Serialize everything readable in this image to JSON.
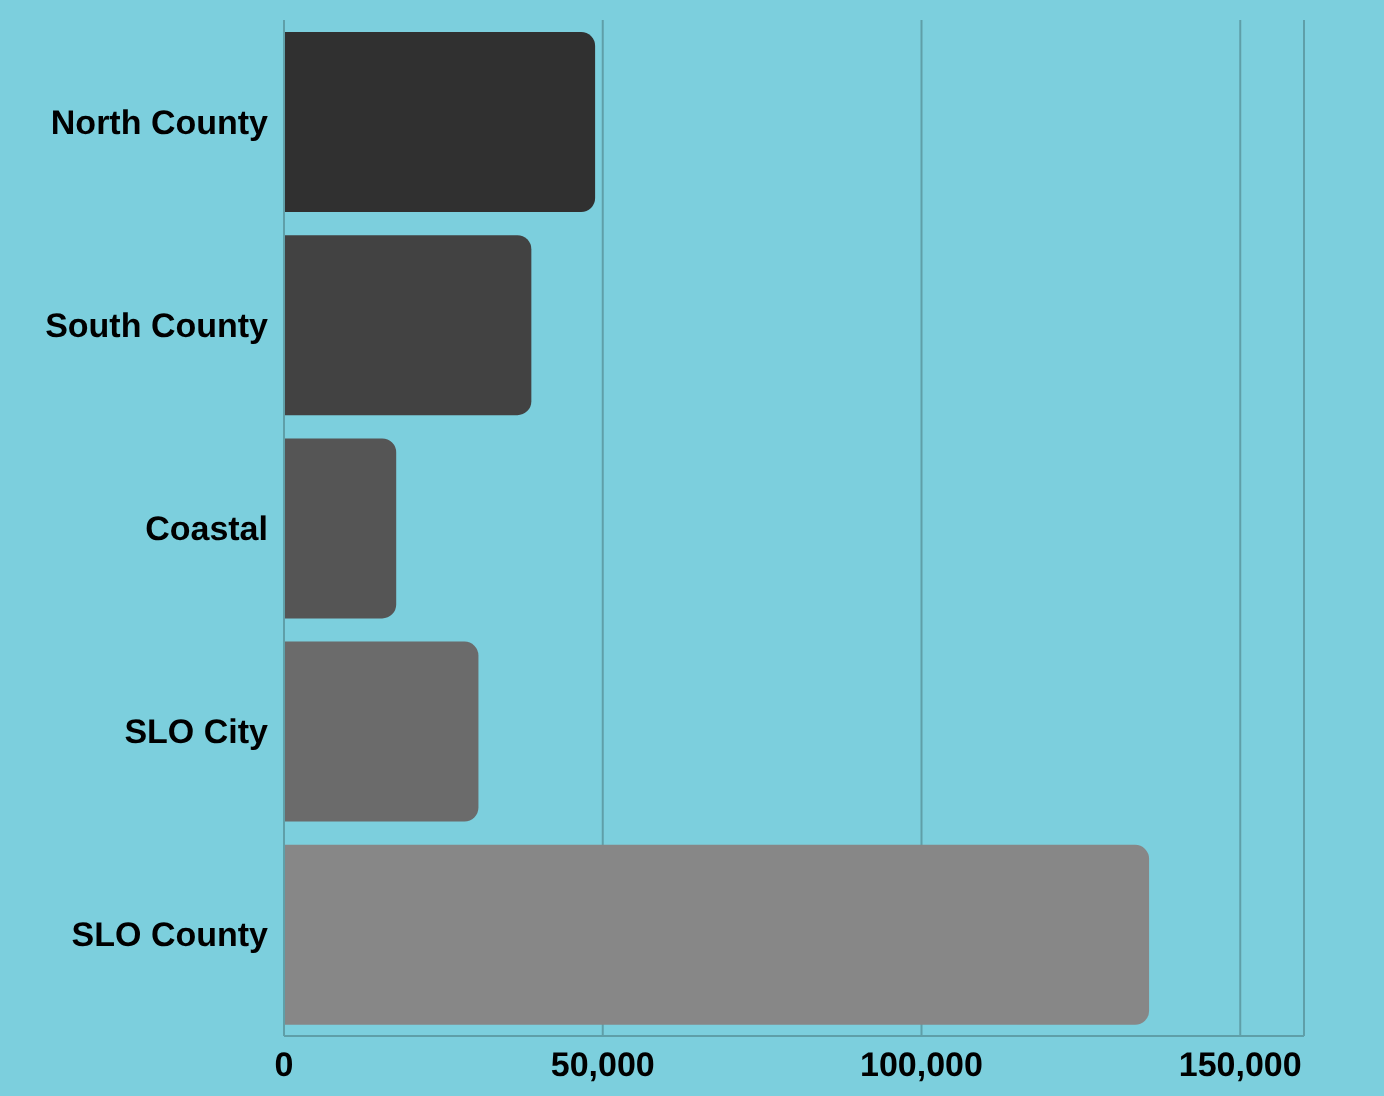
{
  "chart_data": {
    "type": "bar",
    "orientation": "horizontal",
    "categories": [
      "North County",
      "South County",
      "Coastal",
      "SLO City",
      "SLO County"
    ],
    "values": [
      48800,
      38800,
      17600,
      30500,
      135700
    ],
    "colors": [
      "#303030",
      "#424242",
      "#555555",
      "#6b6b6b",
      "#878787"
    ],
    "xlim": [
      0,
      160000
    ],
    "xticks": [
      0,
      {
        "value": 50000,
        "label": "50,000"
      },
      {
        "value": 100000,
        "label": "100,000"
      },
      {
        "value": 150000,
        "label": "150,000"
      }
    ],
    "grid": "x"
  }
}
